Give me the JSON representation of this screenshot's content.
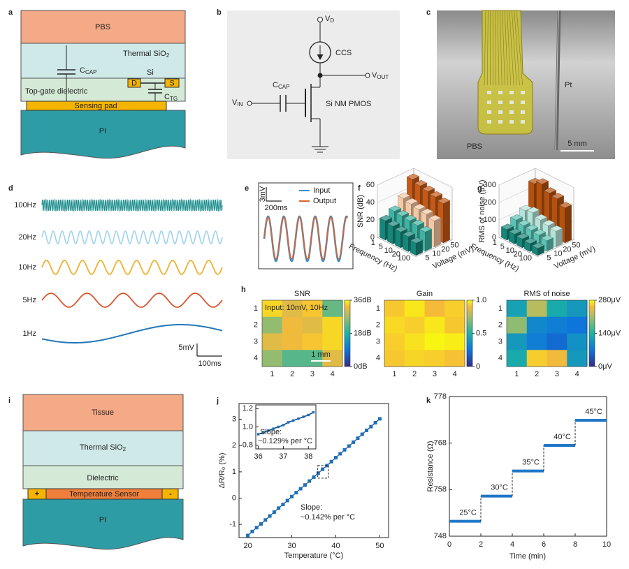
{
  "panel_labels": [
    "a",
    "b",
    "c",
    "d",
    "e",
    "f",
    "g",
    "h",
    "i",
    "j",
    "k"
  ],
  "panel_a": {
    "pbs": "PBS",
    "sio2": {
      "main": "Thermal SiO",
      "sub": "2"
    },
    "dielectric": "Top-gate dielectric",
    "pad": "Sensing pad",
    "pi": "PI",
    "ccap": {
      "main": "C",
      "sub": "CAP"
    },
    "ctg": {
      "main": "C",
      "sub": "TG"
    },
    "si": "Si",
    "d": "D",
    "s": "S"
  },
  "panel_b": {
    "vd": {
      "main": "V",
      "sub": "D"
    },
    "ccs": "CCS",
    "vout": {
      "main": "V",
      "sub": "OUT"
    },
    "ccap": {
      "main": "C",
      "sub": "CAP"
    },
    "vin": {
      "main": "V",
      "sub": "IN"
    },
    "pmos": "Si NM PMOS"
  },
  "panel_c": {
    "pt": "Pt",
    "pbs": "PBS",
    "scale": "5 mm"
  },
  "panel_d": {
    "signals": [
      "100Hz",
      "20Hz",
      "10Hz",
      "5Hz",
      "1Hz"
    ],
    "scale_v": "5mV",
    "scale_t": "100ms"
  },
  "panel_e": {
    "legend": [
      "Input",
      "Output"
    ],
    "scale_v": "3mV",
    "scale_t": "200ms"
  },
  "panel_i": {
    "tissue": "Tissue",
    "sio2": {
      "main": "Thermal SiO",
      "sub": "2"
    },
    "dielectric": "Dielectric",
    "sensor": "Temperature Sensor",
    "pi": "PI",
    "plus": "+",
    "minus": "-"
  },
  "chart_data": [
    {
      "type": "bar3d",
      "zlabel": "SNR (dB)",
      "xlabel": "Frequency (Hz)",
      "ylabel": "Voltage (mV)",
      "xticks": [
        1,
        5,
        10,
        20,
        100
      ],
      "yticks": [
        5,
        10,
        20,
        50
      ],
      "zlim": [
        0,
        60
      ],
      "zticks": [
        0,
        20,
        40,
        60
      ],
      "values": [
        [
          22,
          28,
          38,
          55
        ],
        [
          20,
          27,
          36,
          52
        ],
        [
          18,
          26,
          34,
          50
        ],
        [
          17,
          25,
          33,
          48
        ],
        [
          14,
          22,
          30,
          45
        ]
      ],
      "colors": [
        "#17867a",
        "#3fb3a3",
        "#f5c9a5",
        "#c35a17"
      ]
    },
    {
      "type": "bar3d",
      "zlabel": "RMS of noise (μV)",
      "xlabel": "Frequency (Hz)",
      "ylabel": "Voltage (mV)",
      "xticks": [
        1,
        5,
        10,
        20,
        100
      ],
      "yticks": [
        5,
        10,
        20,
        50
      ],
      "zlim": [
        0,
        300
      ],
      "zticks": [
        0,
        100,
        200,
        300
      ],
      "values": [
        [
          60,
          90,
          120,
          250
        ],
        [
          55,
          80,
          130,
          270
        ],
        [
          50,
          75,
          110,
          240
        ],
        [
          45,
          70,
          100,
          230
        ],
        [
          40,
          60,
          90,
          200
        ]
      ],
      "colors": [
        "#17867a",
        "#5cc2b4",
        "#b6e3d9",
        "#b5510f"
      ]
    },
    {
      "type": "heatmap",
      "title": "SNR",
      "rows": [
        1,
        2,
        3,
        4
      ],
      "cols": [
        1,
        2,
        3,
        4
      ],
      "values": [
        [
          34,
          31,
          33,
          23
        ],
        [
          26,
          32,
          31,
          34
        ],
        [
          31,
          32,
          33,
          34
        ],
        [
          26,
          22,
          22,
          31
        ]
      ],
      "clim": [
        0,
        36
      ],
      "cticks": [
        {
          "value": 36,
          "label": "36dB"
        },
        {
          "value": 18,
          "label": "18dB"
        },
        {
          "value": 0,
          "label": "0dB"
        }
      ],
      "annotation": "Input: 10mV, 10Hz",
      "scale_bar": "1 mm"
    },
    {
      "type": "heatmap",
      "title": "Gain",
      "rows": [
        1,
        2,
        3,
        4
      ],
      "cols": [
        1,
        2,
        3,
        4
      ],
      "values": [
        [
          0.92,
          0.97,
          0.9,
          0.93
        ],
        [
          0.95,
          0.93,
          0.97,
          0.92
        ],
        [
          0.93,
          0.96,
          0.99,
          0.98
        ],
        [
          0.92,
          0.94,
          0.93,
          0.91
        ]
      ],
      "clim": [
        0,
        1
      ],
      "cticks": [
        {
          "value": 1,
          "label": "1.0"
        },
        0.5,
        0
      ]
    },
    {
      "type": "heatmap",
      "title": "RMS of noise",
      "rows": [
        1,
        2,
        3,
        4
      ],
      "cols": [
        1,
        2,
        3,
        4
      ],
      "values": [
        [
          120,
          220,
          130,
          110
        ],
        [
          200,
          90,
          80,
          70
        ],
        [
          110,
          80,
          60,
          100
        ],
        [
          130,
          260,
          250,
          110
        ]
      ],
      "clim": [
        0,
        280
      ],
      "cticks": [
        {
          "value": 280,
          "label": "280μV"
        },
        {
          "value": 140,
          "label": "140μV"
        },
        {
          "value": 0,
          "label": "0μV"
        }
      ]
    },
    {
      "type": "scatter",
      "xlabel": "Temperature (°C)",
      "ylabel": "ΔR/R₀ (%)",
      "x": [
        20,
        21,
        22,
        23,
        24,
        25,
        26,
        27,
        28,
        29,
        30,
        31,
        32,
        33,
        34,
        35,
        36,
        37,
        38,
        39,
        40,
        41,
        42,
        43,
        44,
        45,
        46,
        47,
        48,
        49,
        50
      ],
      "values": [
        -1.42,
        -1.27,
        -1.12,
        -0.98,
        -0.83,
        -0.68,
        -0.53,
        -0.38,
        -0.24,
        -0.09,
        0.06,
        0.21,
        0.36,
        0.5,
        0.65,
        0.8,
        0.95,
        1.1,
        1.24,
        1.39,
        1.54,
        1.69,
        1.84,
        1.98,
        2.13,
        2.28,
        2.43,
        2.58,
        2.72,
        2.87,
        3.02
      ],
      "xlim": [
        18,
        52
      ],
      "ylim": [
        -1.5,
        3.6
      ],
      "xticks": [
        20,
        30,
        40,
        50
      ],
      "yticks": [
        -1,
        0,
        1,
        2,
        3
      ],
      "color": "#1f6fb5",
      "annotations": [
        "Slope:",
        "~0.142% per °C"
      ],
      "inset": {
        "x": [
          36,
          36.2,
          36.4,
          36.6,
          36.8,
          37,
          37.2,
          37.4,
          37.6,
          37.8,
          38,
          38.2
        ],
        "values": [
          0.92,
          0.94,
          0.96,
          0.98,
          1,
          1.02,
          1.05,
          1.07,
          1.09,
          1.11,
          1.13,
          1.16
        ],
        "xlim": [
          35.9,
          38.3
        ],
        "ylim": [
          0.76,
          1.24
        ],
        "xticks": [
          36,
          37,
          38
        ],
        "yticks": [
          0.8,
          {
            "value": 1,
            "label": "1.0"
          },
          1.2
        ],
        "annotations": [
          "Slope:",
          "~0.129% per °C"
        ]
      }
    },
    {
      "type": "step",
      "xlabel": "Time (min)",
      "ylabel": "Resistance (Ω)",
      "x": [
        0,
        2,
        4,
        6,
        8
      ],
      "values": [
        751.2,
        756.6,
        762,
        767.5,
        772.9
      ],
      "annotations": [
        "25°C",
        "30°C",
        "35°C",
        "40°C",
        "45°C"
      ],
      "xlim": [
        0,
        10
      ],
      "ylim": [
        748,
        778
      ],
      "xticks": [
        0,
        2,
        4,
        6,
        8,
        10
      ],
      "yticks": [
        748,
        758,
        768,
        778
      ],
      "color": "#1f77c8"
    }
  ]
}
